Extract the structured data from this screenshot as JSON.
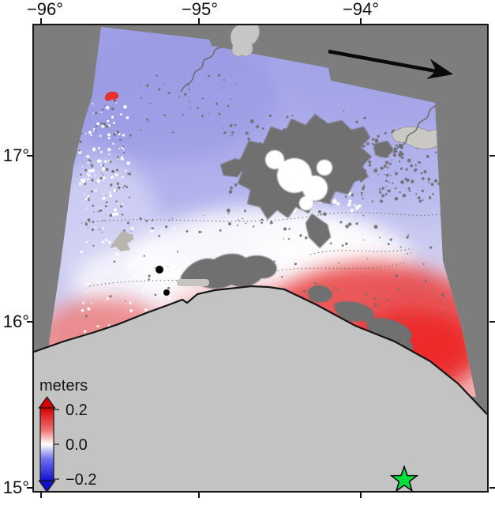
{
  "axes": {
    "x_tick_labels": [
      "−96°",
      "−95°",
      "−94°"
    ],
    "y_tick_labels": [
      "17°",
      "16°",
      "15°"
    ]
  },
  "colorbar": {
    "title": "meters",
    "tick_labels": [
      "0.2",
      "0.0",
      "−0.2"
    ],
    "max_color": "#d40000",
    "mid_color": "#ffffff",
    "min_color": "#1212cc"
  },
  "map": {
    "background_color": "#7d7d7d",
    "ocean_color": "#c3c3c3",
    "uplift_color": "#e84040",
    "subsidence_color": "#9e9ee6",
    "decorrelation_color": "#6f6f6f",
    "epicenter_star_color": "#00df3c",
    "city_dot_color": "#000000",
    "arrow_color": "#0a0a0a"
  }
}
